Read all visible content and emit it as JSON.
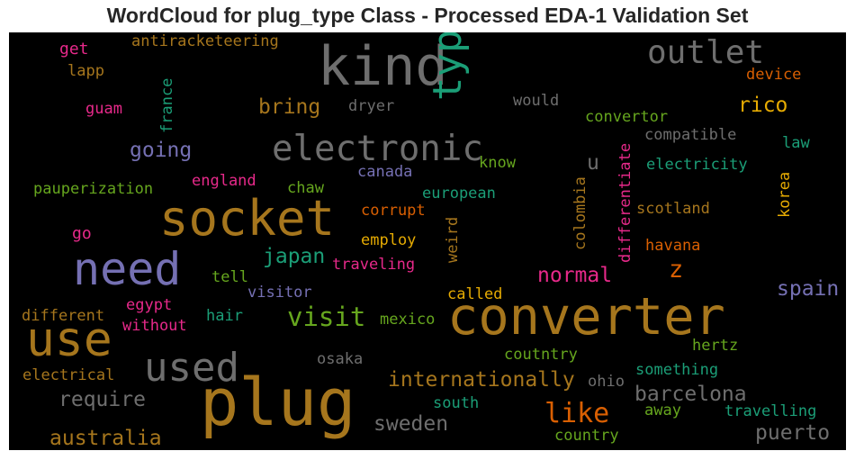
{
  "chart_data": {
    "type": "wordcloud",
    "title": "WordCloud for plug_type Class - Processed EDA-1 Validation Set",
    "background": "#000000",
    "words": [
      {
        "text": "kind",
        "color": "#6e6e6e"
      },
      {
        "text": "type",
        "color": "#1b9e77"
      },
      {
        "text": "outlet",
        "color": "#6e6e6e"
      },
      {
        "text": "antiracketeering",
        "color": "#a6761d"
      },
      {
        "text": "get",
        "color": "#e7298a"
      },
      {
        "text": "lapp",
        "color": "#a6761d"
      },
      {
        "text": "france",
        "color": "#1b9e77"
      },
      {
        "text": "device",
        "color": "#d95f02"
      },
      {
        "text": "guam",
        "color": "#e7298a"
      },
      {
        "text": "bring",
        "color": "#a6761d"
      },
      {
        "text": "dryer",
        "color": "#6e6e6e"
      },
      {
        "text": "would",
        "color": "#6e6e6e"
      },
      {
        "text": "rico",
        "color": "#e6ab02"
      },
      {
        "text": "convertor",
        "color": "#66a61e"
      },
      {
        "text": "compatible",
        "color": "#6e6e6e"
      },
      {
        "text": "law",
        "color": "#1b9e77"
      },
      {
        "text": "going",
        "color": "#7570b3"
      },
      {
        "text": "electronic",
        "color": "#6e6e6e"
      },
      {
        "text": "u",
        "color": "#6e6e6e"
      },
      {
        "text": "know",
        "color": "#66a61e"
      },
      {
        "text": "differentiate",
        "color": "#e7298a"
      },
      {
        "text": "electricity",
        "color": "#1b9e77"
      },
      {
        "text": "korea",
        "color": "#e6ab02"
      },
      {
        "text": "canada",
        "color": "#7570b3"
      },
      {
        "text": "pauperization",
        "color": "#66a61e"
      },
      {
        "text": "england",
        "color": "#e7298a"
      },
      {
        "text": "chaw",
        "color": "#66a61e"
      },
      {
        "text": "european",
        "color": "#1b9e77"
      },
      {
        "text": "colombia",
        "color": "#a6761d"
      },
      {
        "text": "socket",
        "color": "#a6761d"
      },
      {
        "text": "scotland",
        "color": "#a6761d"
      },
      {
        "text": "corrupt",
        "color": "#d95f02"
      },
      {
        "text": "go",
        "color": "#e7298a"
      },
      {
        "text": "weird",
        "color": "#a6761d"
      },
      {
        "text": "need",
        "color": "#7570b3"
      },
      {
        "text": "employ",
        "color": "#e6ab02"
      },
      {
        "text": "havana",
        "color": "#d95f02"
      },
      {
        "text": "japan",
        "color": "#1b9e77"
      },
      {
        "text": "z",
        "color": "#d95f02"
      },
      {
        "text": "traveling",
        "color": "#e7298a"
      },
      {
        "text": "tell",
        "color": "#66a61e"
      },
      {
        "text": "normal",
        "color": "#e7298a"
      },
      {
        "text": "visitor",
        "color": "#7570b3"
      },
      {
        "text": "spain",
        "color": "#7570b3"
      },
      {
        "text": "called",
        "color": "#e6ab02"
      },
      {
        "text": "egypt",
        "color": "#e7298a"
      },
      {
        "text": "different",
        "color": "#a6761d"
      },
      {
        "text": "hair",
        "color": "#1b9e77"
      },
      {
        "text": "visit",
        "color": "#66a61e"
      },
      {
        "text": "converter",
        "color": "#a6761d"
      },
      {
        "text": "without",
        "color": "#e7298a"
      },
      {
        "text": "mexico",
        "color": "#66a61e"
      },
      {
        "text": "use",
        "color": "#a6761d"
      },
      {
        "text": "hertz",
        "color": "#66a61e"
      },
      {
        "text": "osaka",
        "color": "#6e6e6e"
      },
      {
        "text": "coutntry",
        "color": "#66a61e"
      },
      {
        "text": "used",
        "color": "#6e6e6e"
      },
      {
        "text": "something",
        "color": "#1b9e77"
      },
      {
        "text": "electrical",
        "color": "#a6761d"
      },
      {
        "text": "internationally",
        "color": "#a6761d"
      },
      {
        "text": "ohio",
        "color": "#6e6e6e"
      },
      {
        "text": "plug",
        "color": "#a6761d"
      },
      {
        "text": "barcelona",
        "color": "#6e6e6e"
      },
      {
        "text": "require",
        "color": "#6e6e6e"
      },
      {
        "text": "south",
        "color": "#1b9e77"
      },
      {
        "text": "away",
        "color": "#66a61e"
      },
      {
        "text": "travelling",
        "color": "#1b9e77"
      },
      {
        "text": "like",
        "color": "#d95f02"
      },
      {
        "text": "sweden",
        "color": "#6e6e6e"
      },
      {
        "text": "puerto",
        "color": "#6e6e6e"
      },
      {
        "text": "australia",
        "color": "#a6761d"
      },
      {
        "text": "country",
        "color": "#66a61e"
      }
    ]
  }
}
